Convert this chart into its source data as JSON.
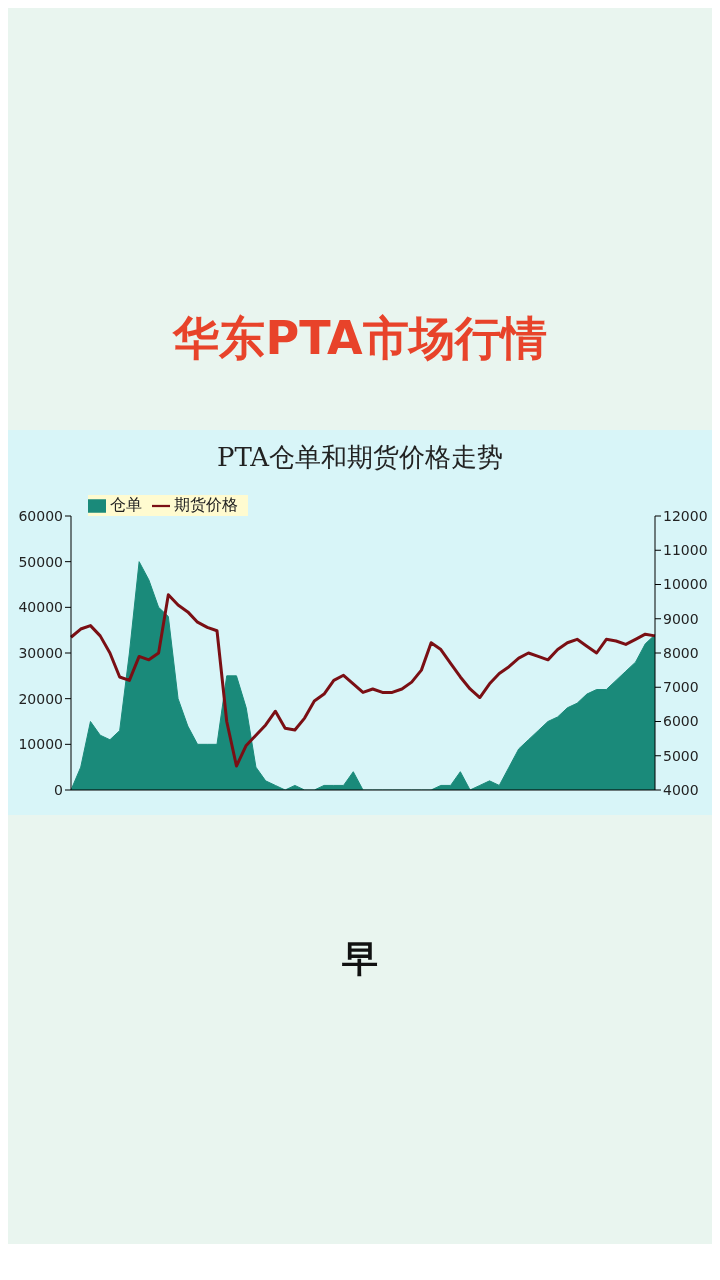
{
  "chart_data": {
    "type": "area",
    "title": "华东PTA市场行情",
    "subtitle": "PTA仓单和期货价格走势",
    "annotations": [
      "早"
    ],
    "categories": [
      null,
      null,
      null,
      null,
      null,
      null,
      null,
      null,
      null,
      null,
      null,
      null,
      null,
      null,
      null,
      null,
      null,
      null,
      null,
      null,
      null,
      null,
      null,
      null,
      null,
      null,
      null,
      null,
      null,
      null,
      null,
      null,
      null,
      null,
      null,
      null,
      null,
      null,
      null,
      null,
      null,
      null,
      null,
      null,
      null,
      null,
      null,
      null,
      null,
      null,
      null,
      null,
      null,
      null,
      null,
      null,
      null,
      null,
      null,
      null,
      null
    ],
    "series": [
      {
        "name": "仓单",
        "color": "#1a8a7a",
        "values": [
          0,
          5000,
          15000,
          12000,
          11000,
          13000,
          30000,
          50000,
          46000,
          40000,
          38000,
          20000,
          14000,
          10000,
          10000,
          10000,
          25000,
          25000,
          18000,
          5000,
          2000,
          1000,
          0,
          1000,
          0,
          0,
          1000,
          1000,
          1000,
          4000,
          0,
          0,
          0,
          0,
          0,
          0,
          0,
          0,
          1000,
          1000,
          4000,
          0,
          1000,
          2000,
          1000,
          5000,
          9000,
          11000,
          13000,
          15000,
          16000,
          18000,
          19000,
          21000,
          22000,
          22000,
          24000,
          26000,
          28000,
          32000,
          34000
        ]
      },
      {
        "name": "期货价格",
        "type": "line",
        "axis": "y2",
        "color": "#7a0f14",
        "values": [
          8460,
          8700,
          8800,
          8500,
          8000,
          7300,
          7200,
          7900,
          7800,
          8000,
          9700,
          9400,
          9200,
          8900,
          8750,
          8650,
          6000,
          4700,
          5300,
          5600,
          5900,
          6300,
          5800,
          5750,
          6100,
          6600,
          6800,
          7200,
          7350,
          7100,
          6850,
          6950,
          6850,
          6850,
          6950,
          7150,
          7500,
          8300,
          8100,
          7700,
          7300,
          6950,
          6700,
          7100,
          7400,
          7600,
          7850,
          8000,
          7900,
          7800,
          8100,
          8300,
          8400,
          8200,
          8000,
          8400,
          8350,
          8250,
          8400,
          8550,
          8500
        ]
      }
    ],
    "ylim": [
      0,
      60000
    ],
    "yticks": [
      0,
      10000,
      20000,
      30000,
      40000,
      50000,
      60000
    ],
    "y2lim": [
      4000,
      12000
    ],
    "y2ticks": [
      4000,
      5000,
      6000,
      7000,
      8000,
      9000,
      10000,
      11000,
      12000
    ],
    "grid": false,
    "legend": "top left"
  }
}
